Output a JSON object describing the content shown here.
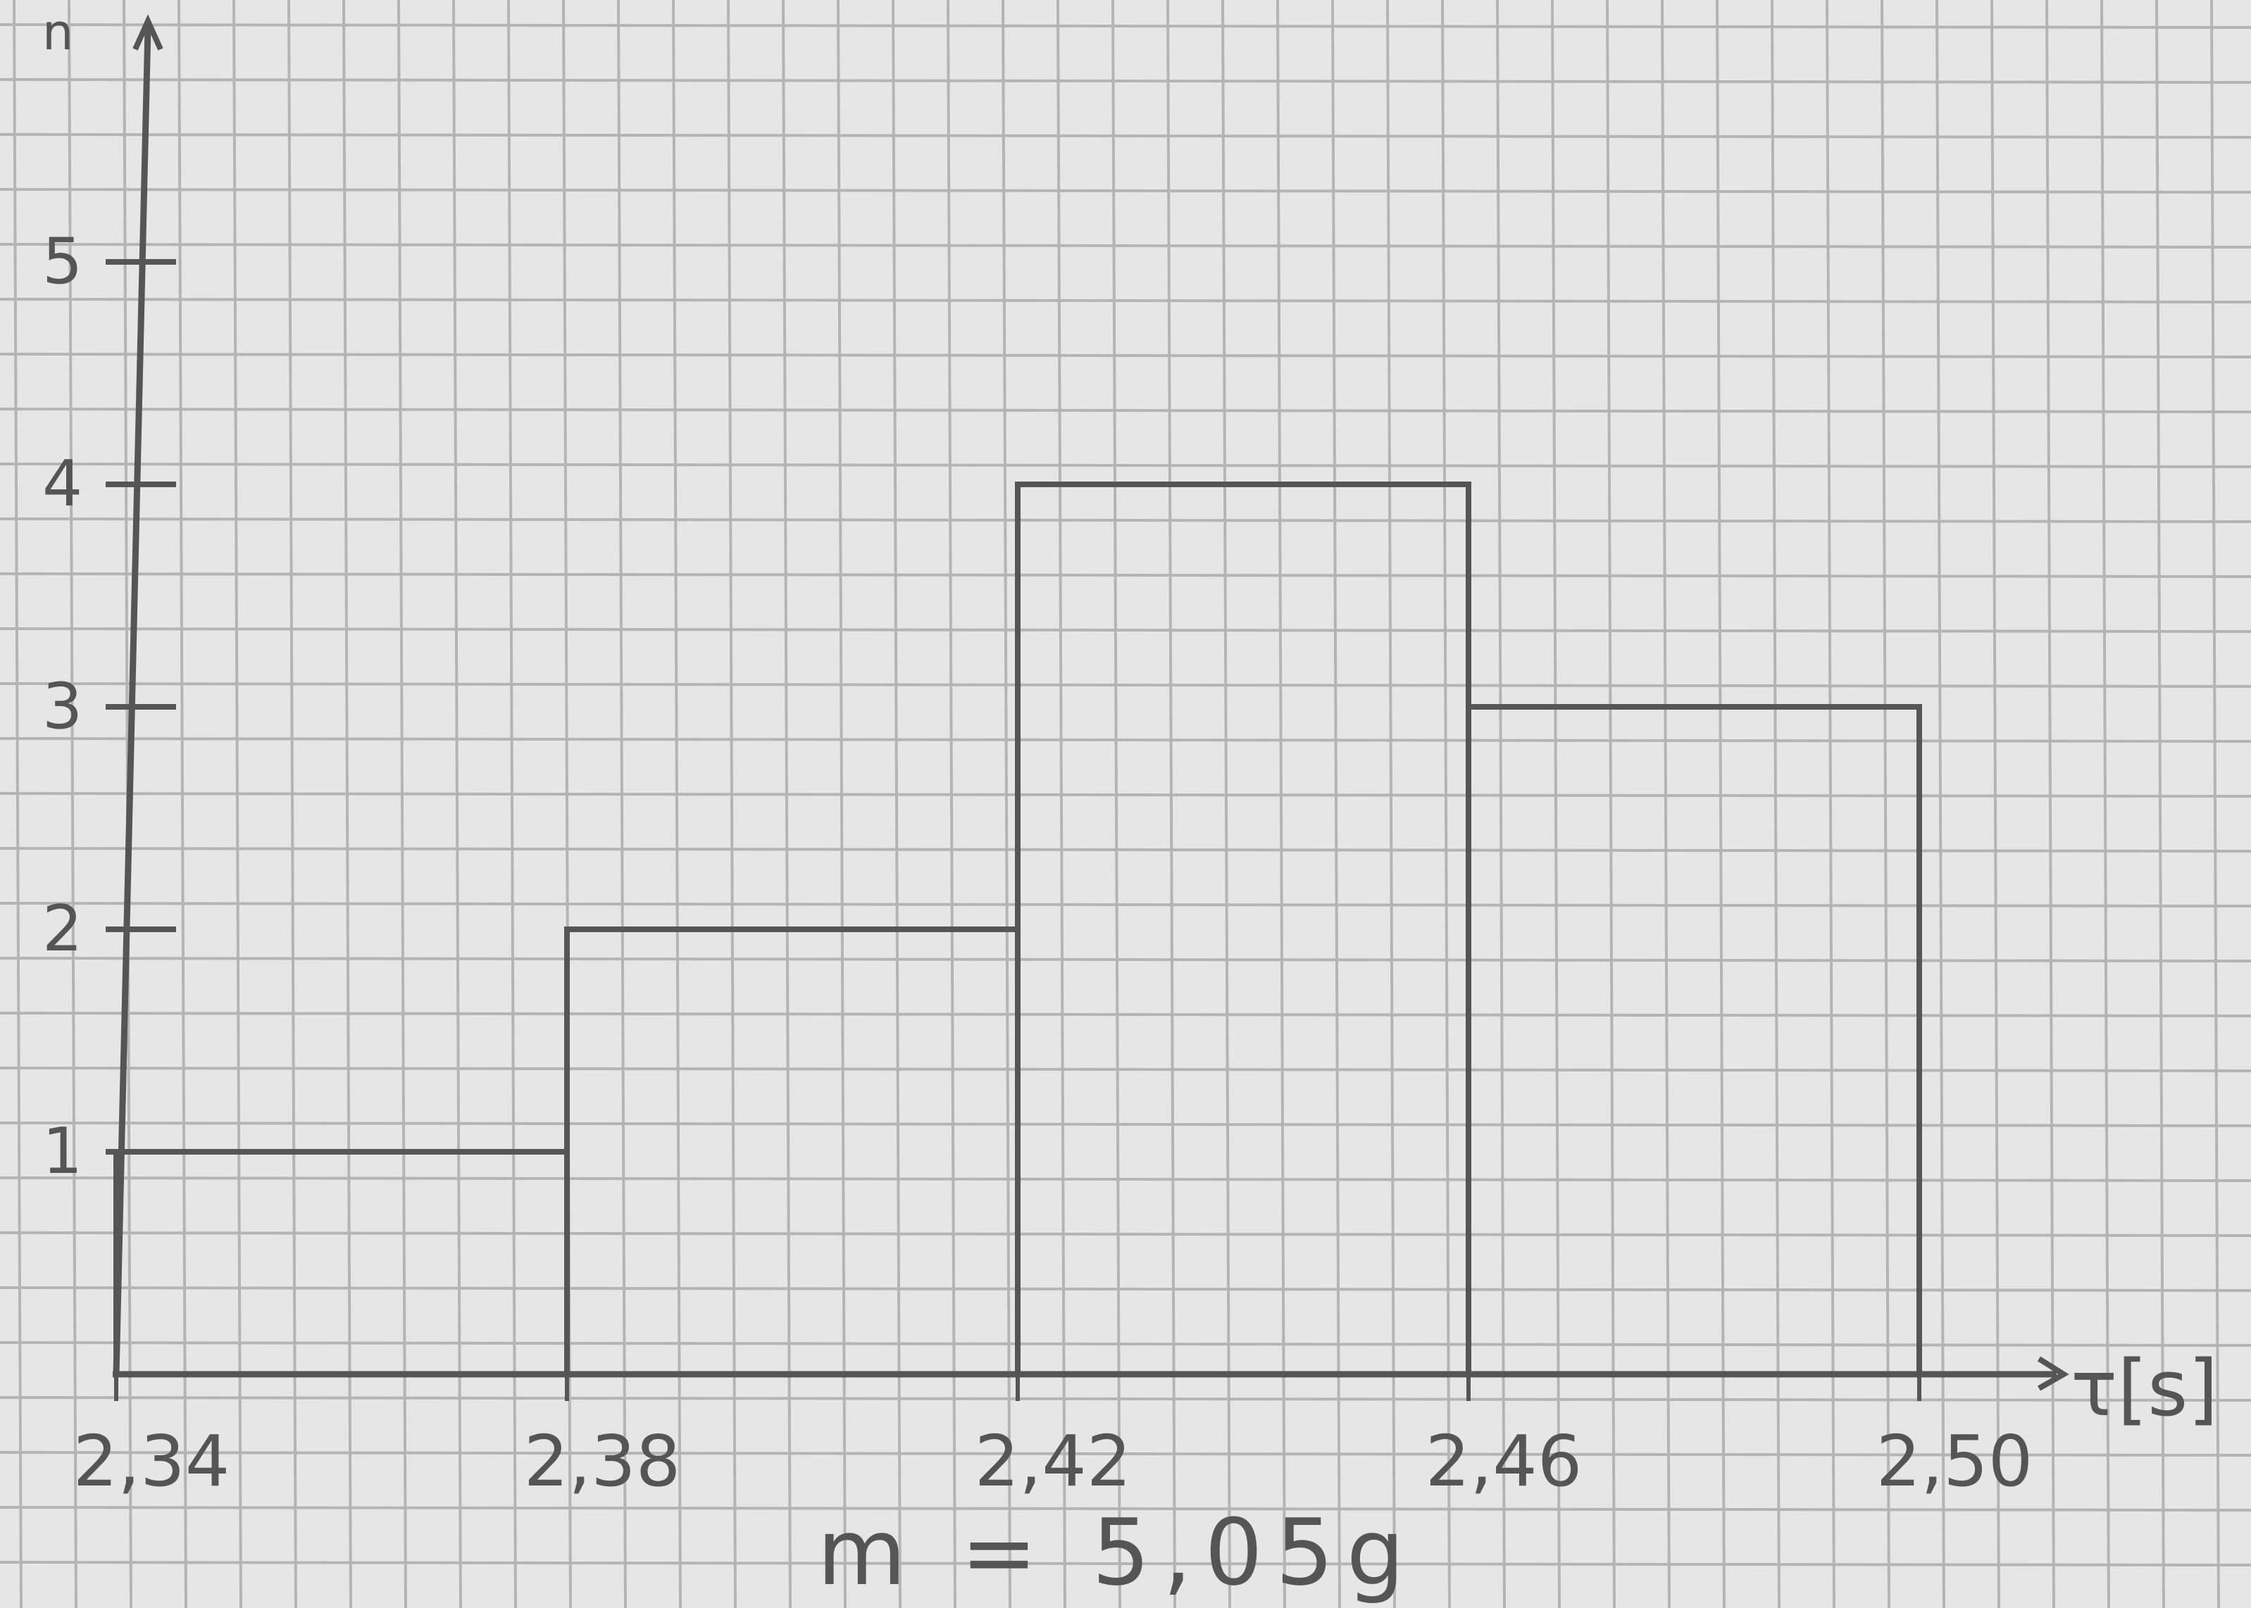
{
  "colors": {
    "paper": "#e6e6e6",
    "grid": "#b4b4b4",
    "ink": "#555555"
  },
  "chart_data": {
    "type": "bar",
    "bar_style": "histogram",
    "bins": [
      {
        "from": 2.34,
        "to": 2.38,
        "value": 1
      },
      {
        "from": 2.38,
        "to": 2.42,
        "value": 2
      },
      {
        "from": 2.42,
        "to": 2.46,
        "value": 4
      },
      {
        "from": 2.46,
        "to": 2.5,
        "value": 3
      }
    ],
    "x_ticks": [
      "2,34",
      "2,38",
      "2,42",
      "2,46",
      "2,50"
    ],
    "x_tick_values": [
      2.34,
      2.38,
      2.42,
      2.46,
      2.5
    ],
    "y_ticks": [
      "1",
      "2",
      "3",
      "4",
      "5"
    ],
    "y_tick_values": [
      1,
      2,
      3,
      4,
      5
    ],
    "xlabel": "τ[s]",
    "ylabel": "n",
    "xlim": [
      2.34,
      2.52
    ],
    "ylim": [
      0,
      6
    ],
    "grid": true,
    "annotation": "m = 5,05g"
  }
}
